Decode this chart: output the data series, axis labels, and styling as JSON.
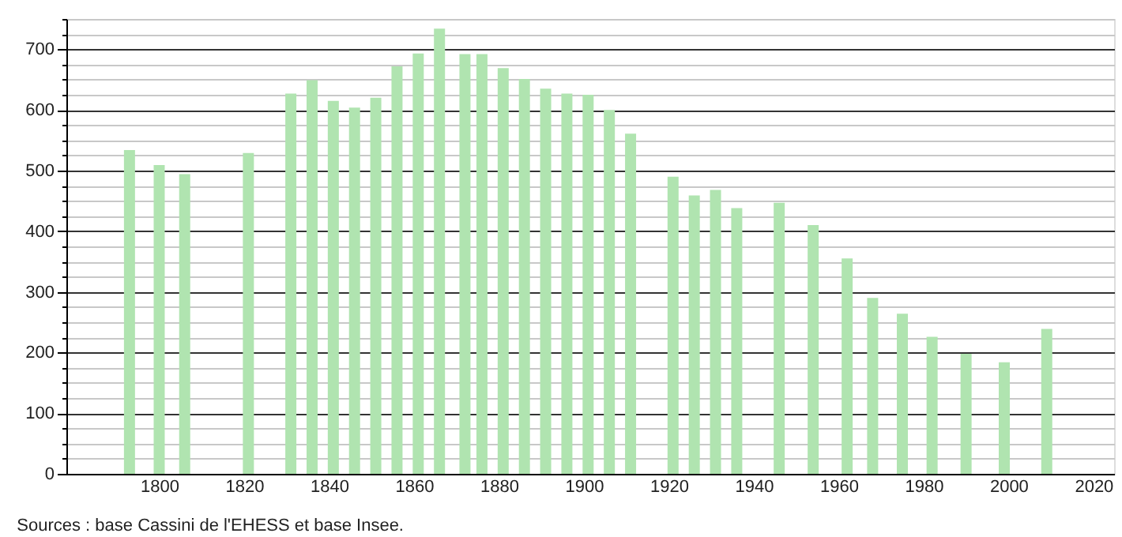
{
  "chart_data": {
    "type": "bar",
    "x": [
      1793,
      1800,
      1806,
      1821,
      1831,
      1836,
      1841,
      1846,
      1851,
      1856,
      1861,
      1866,
      1872,
      1876,
      1881,
      1886,
      1891,
      1896,
      1901,
      1906,
      1911,
      1921,
      1926,
      1931,
      1936,
      1946,
      1954,
      1962,
      1968,
      1975,
      1982,
      1990,
      1999,
      2009
    ],
    "values": [
      534,
      509,
      494,
      529,
      627,
      649,
      615,
      604,
      620,
      672,
      693,
      734,
      692,
      692,
      669,
      651,
      635,
      627,
      625,
      600,
      561,
      490,
      459,
      468,
      438,
      447,
      410,
      355,
      290,
      264,
      226,
      198,
      184,
      239
    ],
    "color": "#b0e4b0",
    "xlim": [
      1780,
      2023
    ],
    "xticks": [
      1800,
      1820,
      1840,
      1860,
      1880,
      1900,
      1920,
      1940,
      1960,
      1980,
      2000,
      2020
    ],
    "ylim": [
      0,
      750
    ],
    "yticks": [
      0,
      {
        "value": 25,
        "label": null
      },
      {
        "value": 50,
        "label": null
      },
      {
        "value": 75,
        "label": null
      },
      100,
      {
        "value": 125,
        "label": null
      },
      {
        "value": 150,
        "label": null
      },
      {
        "value": 175,
        "label": null
      },
      200,
      {
        "value": 225,
        "label": null
      },
      {
        "value": 250,
        "label": null
      },
      {
        "value": 275,
        "label": null
      },
      300,
      {
        "value": 325,
        "label": null
      },
      {
        "value": 350,
        "label": null
      },
      {
        "value": 375,
        "label": null
      },
      400,
      {
        "value": 425,
        "label": null
      },
      {
        "value": 450,
        "label": null
      },
      {
        "value": 475,
        "label": null
      },
      500,
      {
        "value": 525,
        "label": null
      },
      {
        "value": 550,
        "label": null
      },
      {
        "value": 575,
        "label": null
      },
      600,
      {
        "value": 625,
        "label": null
      },
      {
        "value": 650,
        "label": null
      },
      {
        "value": 675,
        "label": null
      },
      700,
      {
        "value": 725,
        "label": null
      },
      {
        "value": 750,
        "label": null
      }
    ],
    "grid": "y",
    "annotations": [
      "Sources : base Cassini de l'EHESS et base Insee."
    ]
  }
}
